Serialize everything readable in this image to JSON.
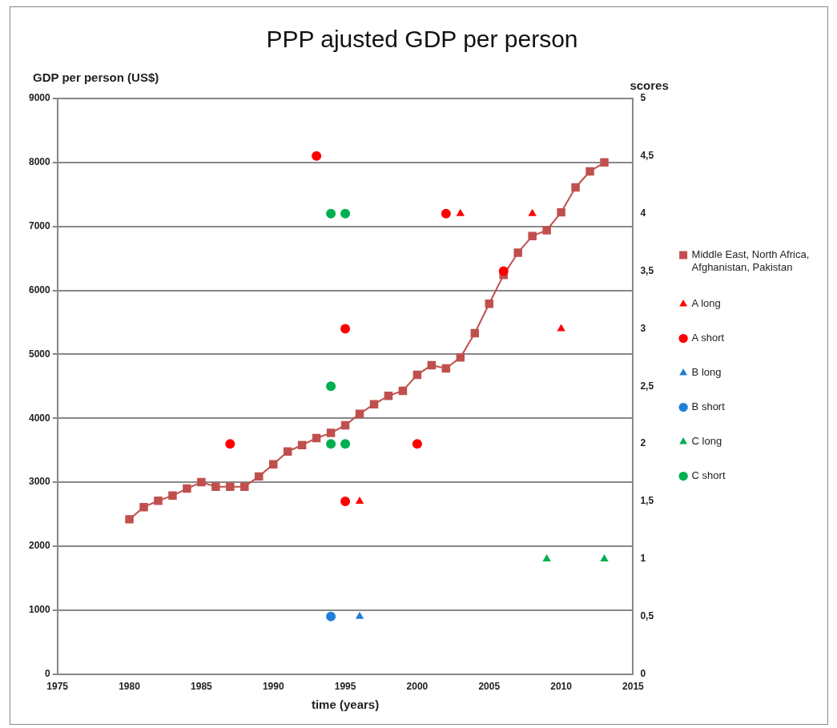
{
  "chart_data": {
    "type": "line",
    "title": "PPP ajusted GDP per person",
    "xlabel": "time (years)",
    "ylabel": "GDP per person (US$)",
    "y2label": "scores",
    "xlim": [
      1975,
      2015
    ],
    "xticks": [
      1975,
      1980,
      1985,
      1990,
      1995,
      2000,
      2005,
      2010,
      2015
    ],
    "ylim": [
      0,
      9000
    ],
    "yticks": [
      0,
      1000,
      2000,
      3000,
      4000,
      5000,
      6000,
      7000,
      8000,
      9000
    ],
    "y2lim": [
      0,
      5
    ],
    "y2ticks": [
      0,
      {
        "value": 0.5,
        "label": "0,5"
      },
      1,
      {
        "value": 1.5,
        "label": "1,5"
      },
      2,
      {
        "value": 2.5,
        "label": "2,5"
      },
      3,
      {
        "value": 3.5,
        "label": "3,5"
      },
      4,
      {
        "value": 4.5,
        "label": "4,5"
      },
      5
    ],
    "grid": "y",
    "legend": "right",
    "line_style": "solid",
    "series": [
      {
        "name": "Middle East, North Africa, Afghanistan, Pakistan",
        "type": "line",
        "marker": "square",
        "color": "#c0504d",
        "x": [
          1980,
          1981,
          1982,
          1983,
          1984,
          1985,
          1986,
          1987,
          1988,
          1989,
          1990,
          1991,
          1992,
          1993,
          1994,
          1995,
          1996,
          1997,
          1998,
          1999,
          2000,
          2001,
          2002,
          2003,
          2004,
          2005,
          2006,
          2007,
          2008,
          2009,
          2010,
          2011,
          2012,
          2013
        ],
        "values": [
          2420,
          2610,
          2710,
          2790,
          2900,
          3000,
          2930,
          2930,
          2930,
          3090,
          3280,
          3480,
          3580,
          3690,
          3770,
          3890,
          4070,
          4220,
          4350,
          4430,
          4680,
          4830,
          4780,
          4950,
          5330,
          5790,
          6240,
          6590,
          6850,
          6940,
          7220,
          7610,
          7860,
          8000
        ]
      },
      {
        "name": "A long",
        "type": "scatter",
        "marker": "triangle",
        "axis": "y2",
        "color": "#ff0000",
        "x": [
          1996,
          2003,
          2008,
          2010
        ],
        "values": [
          1.5,
          4,
          4,
          3
        ]
      },
      {
        "name": "A short",
        "type": "scatter",
        "marker": "circle",
        "axis": "y2",
        "color": "#ff0000",
        "x": [
          1987,
          1993,
          1995,
          1995,
          2000,
          2002,
          2006
        ],
        "values": [
          2,
          4.5,
          3,
          1.5,
          2,
          4,
          3.5
        ]
      },
      {
        "name": "B long",
        "type": "scatter",
        "marker": "triangle",
        "axis": "y2",
        "color": "#1f7fd8",
        "x": [
          1996
        ],
        "values": [
          0.5
        ]
      },
      {
        "name": "B short",
        "type": "scatter",
        "marker": "circle",
        "axis": "y2",
        "color": "#1f7fd8",
        "x": [
          1994
        ],
        "values": [
          0.5
        ]
      },
      {
        "name": "C long",
        "type": "scatter",
        "marker": "triangle",
        "axis": "y2",
        "color": "#00b050",
        "x": [
          2009,
          2013
        ],
        "values": [
          1,
          1
        ]
      },
      {
        "name": "C short",
        "type": "scatter",
        "marker": "circle",
        "axis": "y2",
        "color": "#00b050",
        "x": [
          1994,
          1995,
          1994,
          1994,
          1995
        ],
        "values": [
          4,
          4,
          2.5,
          2,
          2
        ]
      }
    ]
  }
}
